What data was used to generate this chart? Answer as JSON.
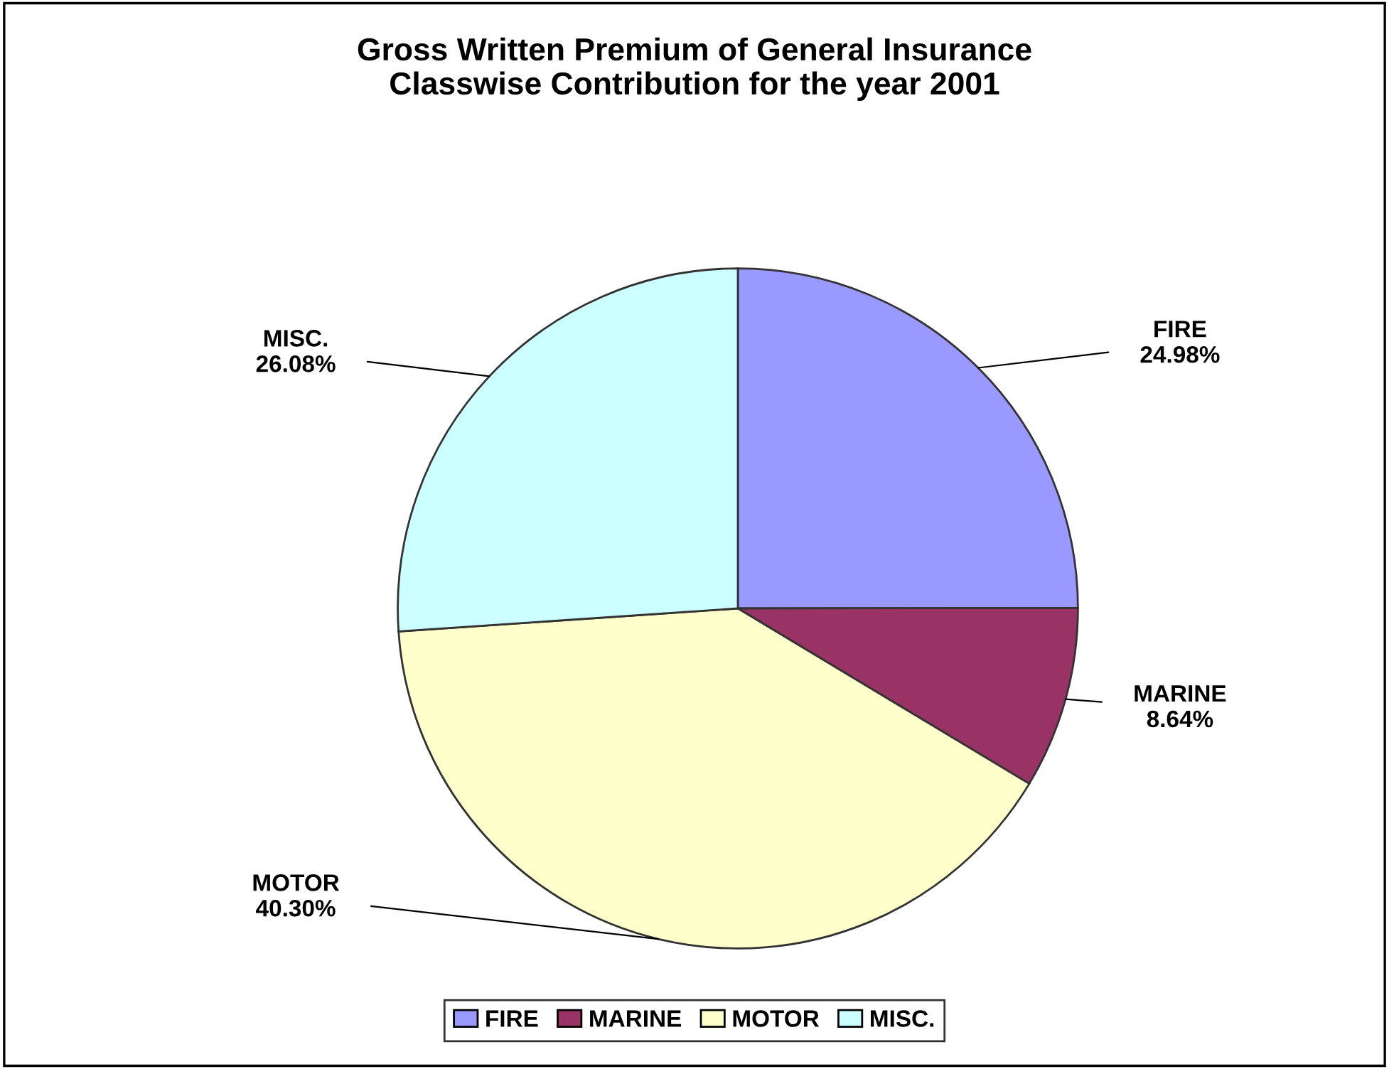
{
  "chart_data": {
    "type": "pie",
    "title": "Gross Written Premium of General Insurance\nClasswise Contribution for the year 2001",
    "categories": [
      "FIRE",
      "MARINE",
      "MOTOR",
      "MISC."
    ],
    "values": [
      24.98,
      8.64,
      40.3,
      26.08
    ],
    "value_labels": [
      "24.98%",
      "8.64%",
      "40.30%",
      "26.08%"
    ],
    "colors": [
      "#9999ff",
      "#993366",
      "#ffffcc",
      "#ccffff"
    ],
    "legend": "bottom"
  }
}
